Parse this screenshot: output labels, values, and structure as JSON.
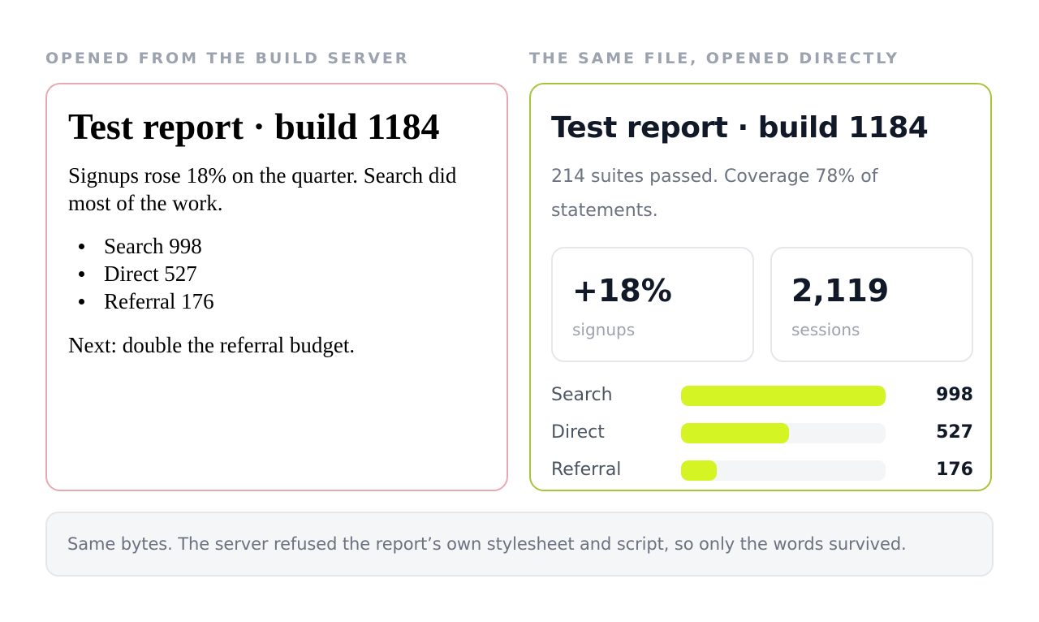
{
  "labels": {
    "left": "OPENED FROM THE BUILD SERVER",
    "right": "THE SAME FILE, OPENED DIRECTLY"
  },
  "raw_report": {
    "title": "Test report · build 1184",
    "lede": "Signups rose 18% on the quarter. Search did most of the work.",
    "items": [
      "Search 998",
      "Direct 527",
      "Referral 176"
    ],
    "next": "Next: double the referral budget."
  },
  "styled_report": {
    "title": "Test report · build 1184",
    "lede": "214 suites passed. Coverage 78% of statements.",
    "stats": [
      {
        "value": "+18%",
        "label": "signups"
      },
      {
        "value": "2,119",
        "label": "sessions"
      }
    ],
    "bars": [
      {
        "label": "Search",
        "value": "998",
        "amount": 998
      },
      {
        "label": "Direct",
        "value": "527",
        "amount": 527
      },
      {
        "label": "Referral",
        "value": "176",
        "amount": 176
      }
    ],
    "bar_max": 998,
    "bar_color": "#d4f523"
  },
  "note": "Same bytes. The server refused the report’s own stylesheet and script, so only the words survived.",
  "colors": {
    "raw_border": "#e8a9b1",
    "styled_border": "#a8c43a",
    "label": "#9ca3af"
  }
}
